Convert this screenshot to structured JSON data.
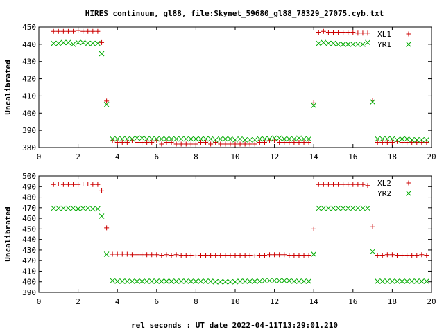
{
  "title": "HIRES continuum, gl88, file:Skynet_59680_gl88_78329_27075.cyb.txt",
  "xlabel": "rel seconds : UT date 2022-04-11T13:29:01.210",
  "colors": {
    "red": "#cc0000",
    "green": "#00aa00"
  },
  "chart_data": [
    {
      "type": "scatter",
      "ylabel": "Uncalibrated",
      "xlim": [
        0,
        20
      ],
      "ylim": [
        380,
        450
      ],
      "x_ticks": [
        "0",
        "2",
        "4",
        "6",
        "8",
        "10",
        "12",
        "14",
        "16",
        "18",
        "20"
      ],
      "y_ticks": [
        "380",
        "390",
        "400",
        "410",
        "420",
        "430",
        "440",
        "450"
      ],
      "legend_position": "top-right",
      "series": [
        {
          "name": "XL1",
          "marker": "plus",
          "color": "#cc0000",
          "x": [
            0.75,
            1.0,
            1.25,
            1.5,
            1.75,
            2.0,
            2.25,
            2.5,
            2.75,
            3.0,
            3.2,
            3.45,
            3.75,
            4.0,
            4.25,
            4.5,
            4.75,
            5.0,
            5.25,
            5.5,
            5.75,
            6.0,
            6.25,
            6.5,
            6.75,
            7.0,
            7.25,
            7.5,
            7.75,
            8.0,
            8.25,
            8.5,
            8.75,
            9.0,
            9.25,
            9.5,
            9.75,
            10.0,
            10.25,
            10.5,
            10.75,
            11.0,
            11.25,
            11.5,
            11.75,
            12.0,
            12.25,
            12.5,
            12.75,
            13.0,
            13.25,
            13.5,
            13.75,
            14.0,
            14.25,
            14.5,
            14.75,
            15.0,
            15.25,
            15.5,
            15.75,
            16.0,
            16.25,
            16.5,
            16.75,
            17.0,
            17.25,
            17.5,
            17.75,
            18.0,
            18.25,
            18.5,
            18.75,
            19.0,
            19.25,
            19.5,
            19.75
          ],
          "y": [
            447.5,
            447.5,
            447.5,
            447.5,
            447.5,
            448,
            447.5,
            447.5,
            447.5,
            447.5,
            441,
            407,
            384,
            383,
            383,
            383,
            384,
            383,
            383,
            383,
            383,
            384,
            382,
            383,
            383,
            382,
            382,
            382,
            382,
            382,
            383,
            383,
            382,
            383,
            382,
            382,
            382,
            382,
            382,
            382,
            382,
            382,
            383,
            383,
            384,
            384,
            383,
            383,
            383,
            383,
            383,
            383,
            383,
            406,
            447,
            447.5,
            447,
            447,
            447,
            447,
            447,
            447,
            446.5,
            446.5,
            446.5,
            407.5,
            383,
            383,
            383,
            383,
            383.5,
            383,
            383,
            383,
            383,
            383,
            383
          ]
        },
        {
          "name": "YR1",
          "marker": "cross",
          "color": "#00aa00",
          "x": [
            0.75,
            1.0,
            1.25,
            1.5,
            1.75,
            2.0,
            2.25,
            2.5,
            2.75,
            3.0,
            3.2,
            3.45,
            3.75,
            4.0,
            4.25,
            4.5,
            4.75,
            5.0,
            5.25,
            5.5,
            5.75,
            6.0,
            6.25,
            6.5,
            6.75,
            7.0,
            7.25,
            7.5,
            7.75,
            8.0,
            8.25,
            8.5,
            8.75,
            9.0,
            9.25,
            9.5,
            9.75,
            10.0,
            10.25,
            10.5,
            10.75,
            11.0,
            11.25,
            11.5,
            11.75,
            12.0,
            12.25,
            12.5,
            12.75,
            13.0,
            13.25,
            13.5,
            13.75,
            14.0,
            14.25,
            14.5,
            14.75,
            15.0,
            15.25,
            15.5,
            15.75,
            16.0,
            16.25,
            16.5,
            16.75,
            17.0,
            17.25,
            17.5,
            17.75,
            18.0,
            18.25,
            18.5,
            18.75,
            19.0,
            19.25,
            19.5,
            19.75
          ],
          "y": [
            440.5,
            440.5,
            441,
            441,
            440,
            441,
            441,
            440.5,
            440.5,
            440.5,
            434.5,
            405,
            385,
            385,
            385,
            385,
            385,
            385.5,
            385.5,
            385,
            385,
            385,
            385,
            385,
            385,
            385,
            385,
            385,
            385,
            385,
            385,
            385,
            385,
            384.5,
            385,
            385,
            385,
            384.5,
            385,
            384.5,
            384.5,
            384.5,
            385,
            385,
            385,
            385.5,
            385.5,
            385,
            385,
            385,
            385.5,
            385,
            385,
            404.5,
            440.5,
            441,
            440.5,
            440.5,
            440,
            440,
            440,
            440,
            440,
            440,
            441,
            406.5,
            385,
            385,
            385,
            385,
            384.5,
            385,
            385,
            384.5,
            384.5,
            384.5,
            384.5
          ]
        }
      ]
    },
    {
      "type": "scatter",
      "ylabel": "Uncalibrated",
      "xlim": [
        0,
        20
      ],
      "ylim": [
        390,
        500
      ],
      "x_ticks": [
        "0",
        "2",
        "4",
        "6",
        "8",
        "10",
        "12",
        "14",
        "16",
        "18",
        "20"
      ],
      "y_ticks": [
        "390",
        "400",
        "410",
        "420",
        "430",
        "440",
        "450",
        "460",
        "470",
        "480",
        "490",
        "500"
      ],
      "legend_position": "top-right",
      "series": [
        {
          "name": "XL2",
          "marker": "plus",
          "color": "#cc0000",
          "x": [
            0.75,
            1.0,
            1.25,
            1.5,
            1.75,
            2.0,
            2.25,
            2.5,
            2.75,
            3.0,
            3.2,
            3.45,
            3.75,
            4.0,
            4.25,
            4.5,
            4.75,
            5.0,
            5.25,
            5.5,
            5.75,
            6.0,
            6.25,
            6.5,
            6.75,
            7.0,
            7.25,
            7.5,
            7.75,
            8.0,
            8.25,
            8.5,
            8.75,
            9.0,
            9.25,
            9.5,
            9.75,
            10.0,
            10.25,
            10.5,
            10.75,
            11.0,
            11.25,
            11.5,
            11.75,
            12.0,
            12.25,
            12.5,
            12.75,
            13.0,
            13.25,
            13.5,
            13.75,
            14.0,
            14.25,
            14.5,
            14.75,
            15.0,
            15.25,
            15.5,
            15.75,
            16.0,
            16.25,
            16.5,
            16.75,
            17.0,
            17.25,
            17.5,
            17.75,
            18.0,
            18.25,
            18.5,
            18.75,
            19.0,
            19.25,
            19.5,
            19.75
          ],
          "y": [
            492,
            492.5,
            492,
            492,
            492,
            492,
            492.5,
            492.5,
            492,
            492,
            486,
            451,
            426,
            426,
            426,
            426,
            425.5,
            425.5,
            425.5,
            425.5,
            425.5,
            425.5,
            425,
            425.5,
            425,
            425.5,
            425,
            425,
            425,
            424.5,
            425,
            425,
            425,
            425,
            425,
            425,
            425,
            425,
            425,
            425,
            425,
            424.5,
            425,
            425,
            425.5,
            425.5,
            425.5,
            425.5,
            425,
            425,
            425,
            425,
            425,
            450,
            492,
            492,
            492,
            492,
            492,
            492,
            492,
            492,
            492,
            492,
            491,
            452,
            425,
            425,
            425.5,
            425.5,
            425,
            425,
            425,
            425,
            425,
            425.5,
            425
          ]
        },
        {
          "name": "YR2",
          "marker": "cross",
          "color": "#00aa00",
          "x": [
            0.75,
            1.0,
            1.25,
            1.5,
            1.75,
            2.0,
            2.25,
            2.5,
            2.75,
            3.0,
            3.2,
            3.45,
            3.75,
            4.0,
            4.25,
            4.5,
            4.75,
            5.0,
            5.25,
            5.5,
            5.75,
            6.0,
            6.25,
            6.5,
            6.75,
            7.0,
            7.25,
            7.5,
            7.75,
            8.0,
            8.25,
            8.5,
            8.75,
            9.0,
            9.25,
            9.5,
            9.75,
            10.0,
            10.25,
            10.5,
            10.75,
            11.0,
            11.25,
            11.5,
            11.75,
            12.0,
            12.25,
            12.5,
            12.75,
            13.0,
            13.25,
            13.5,
            13.75,
            14.0,
            14.25,
            14.5,
            14.75,
            15.0,
            15.25,
            15.5,
            15.75,
            16.0,
            16.25,
            16.5,
            16.75,
            17.0,
            17.25,
            17.5,
            17.75,
            18.0,
            18.25,
            18.5,
            18.75,
            19.0,
            19.25,
            19.5,
            19.75
          ],
          "y": [
            469.5,
            469.5,
            469.5,
            469.5,
            469.5,
            469,
            469.5,
            469.5,
            469,
            469,
            462,
            426,
            401,
            400.5,
            400.5,
            400.5,
            400.5,
            400.5,
            400.5,
            400.5,
            400.5,
            400.5,
            400.5,
            400.5,
            400.5,
            400.5,
            400.5,
            400.5,
            400.5,
            400.5,
            400.5,
            400.5,
            400.5,
            400,
            400,
            400,
            400,
            400,
            400.5,
            400.5,
            400.5,
            400.5,
            400.5,
            401,
            401,
            401,
            401,
            401,
            401,
            400.5,
            400.5,
            400.5,
            400.5,
            426,
            469.5,
            469.5,
            469.5,
            469.5,
            469.5,
            469.5,
            469.5,
            469.5,
            469.5,
            469.5,
            469.5,
            428.5,
            400.5,
            400.5,
            400.5,
            400.5,
            400.5,
            400.5,
            400.5,
            400.5,
            400.5,
            400.5,
            400.5
          ]
        }
      ]
    }
  ]
}
